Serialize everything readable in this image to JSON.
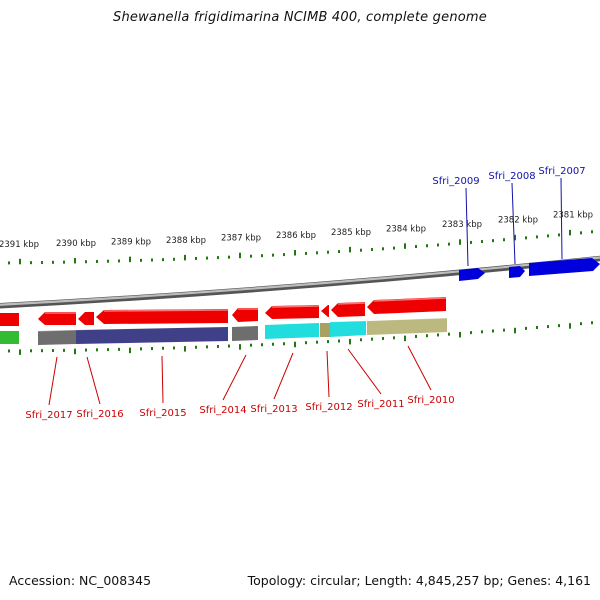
{
  "title": "Shewanella frigidimarina NCIMB 400, complete genome",
  "footer": {
    "accession": "Accession: NC_008345",
    "summary": "Topology: circular; Length: 4,845,257 bp; Genes: 4,161"
  },
  "colors": {
    "forward_gene": "#0000dd",
    "reverse_gene": "#ee0000",
    "forward_label": "#1111aa",
    "reverse_label": "#cc0000",
    "tick": "#227711",
    "backbone": "#8a8a8a",
    "cog_gray": "#6e6e6e",
    "cog_navy": "#404088",
    "cog_cyan": "#22dddd",
    "cog_olive": "#aaa060",
    "cog_khaki": "#bbb880",
    "cog_green": "#33bb33"
  },
  "scale_labels": [
    "2391 kbp",
    "2390 kbp",
    "2389 kbp",
    "2388 kbp",
    "2387 kbp",
    "2386 kbp",
    "2385 kbp",
    "2384 kbp",
    "2383 kbp",
    "2382 kbp",
    "2381 kbp"
  ],
  "forward_genes": [
    "Sfri_2009",
    "Sfri_2008",
    "Sfri_2007"
  ],
  "reverse_genes": [
    "Sfri_2017",
    "Sfri_2016",
    "Sfri_2015",
    "Sfri_2014",
    "Sfri_2013",
    "Sfri_2012",
    "Sfri_2011",
    "Sfri_2010"
  ]
}
